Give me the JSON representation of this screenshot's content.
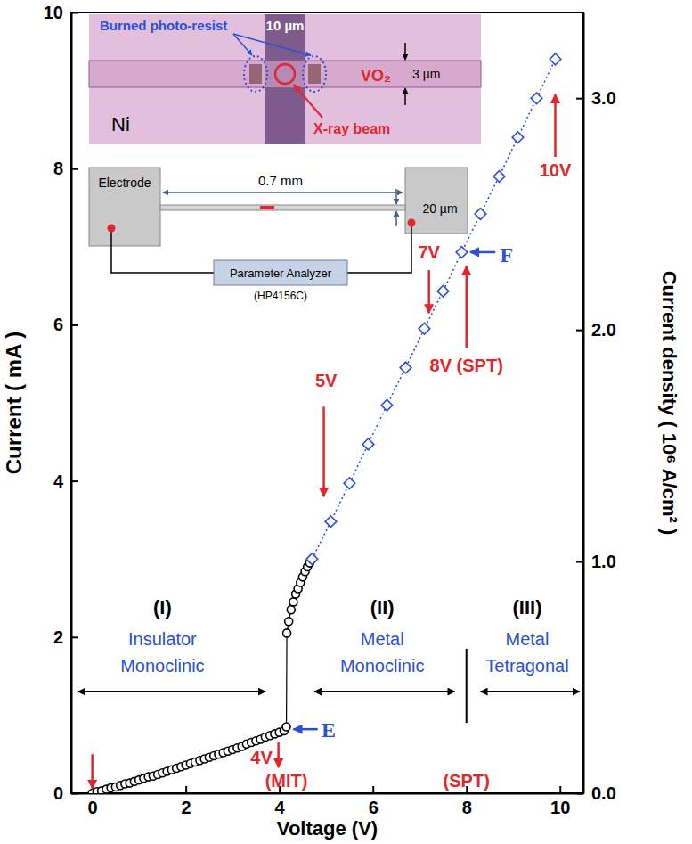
{
  "chart_data": {
    "type": "line",
    "xlabel": "Voltage (V)",
    "ylabel": "Current ( mA )",
    "y2label": "Current density ( 10⁶ A/cm² )",
    "xlim": [
      -0.45,
      10.5
    ],
    "ylim": [
      0,
      10
    ],
    "y2lim": [
      0,
      3.37
    ],
    "xticks": [
      0,
      2,
      4,
      6,
      8,
      10
    ],
    "yticks": [
      0,
      2,
      4,
      6,
      8,
      10
    ],
    "y2ticks": [
      {
        "value": 0,
        "label": "0.0"
      },
      {
        "value": 1,
        "label": "1.0"
      },
      {
        "value": 2,
        "label": "2.0"
      },
      {
        "value": 3,
        "label": "3.0"
      }
    ],
    "grid": false,
    "series": [
      {
        "type": "line",
        "color": "#000000",
        "marker": "open-circle",
        "line_style": "solid",
        "x": [
          0,
          0.1,
          0.2,
          0.3,
          0.4,
          0.5,
          0.6,
          0.7,
          0.8,
          0.9,
          1.0,
          1.1,
          1.2,
          1.3,
          1.4,
          1.5,
          1.6,
          1.7,
          1.8,
          1.9,
          2.0,
          2.1,
          2.2,
          2.3,
          2.4,
          2.5,
          2.6,
          2.7,
          2.8,
          2.9,
          3.0,
          3.1,
          3.2,
          3.3,
          3.4,
          3.5,
          3.6,
          3.7,
          3.8,
          3.9,
          4.0,
          4.1,
          4.15,
          4.16,
          4.2,
          4.25,
          4.3,
          4.35,
          4.4,
          4.45,
          4.5,
          4.55,
          4.6,
          4.65,
          4.7
        ],
        "values": [
          0,
          0.02,
          0.03,
          0.05,
          0.07,
          0.08,
          0.1,
          0.12,
          0.13,
          0.15,
          0.17,
          0.19,
          0.21,
          0.22,
          0.24,
          0.26,
          0.28,
          0.3,
          0.32,
          0.34,
          0.36,
          0.38,
          0.4,
          0.42,
          0.44,
          0.46,
          0.48,
          0.5,
          0.52,
          0.54,
          0.56,
          0.58,
          0.6,
          0.63,
          0.65,
          0.67,
          0.69,
          0.72,
          0.74,
          0.76,
          0.78,
          0.8,
          0.85,
          2.05,
          2.2,
          2.35,
          2.45,
          2.55,
          2.62,
          2.7,
          2.77,
          2.84,
          2.9,
          2.95,
          3.0
        ]
      },
      {
        "type": "line",
        "color": "#2c4fd6",
        "marker": "open-diamond",
        "line_style": "dotted",
        "x": [
          4.7,
          5.1,
          5.5,
          5.9,
          6.3,
          6.7,
          7.1,
          7.5,
          7.9,
          8.3,
          8.7,
          9.1,
          9.5,
          9.9
        ],
        "values": [
          3.0,
          3.48,
          3.97,
          4.47,
          4.97,
          5.45,
          5.95,
          6.43,
          6.93,
          7.42,
          7.9,
          8.4,
          8.9,
          9.4
        ]
      }
    ],
    "annotations": [
      {
        "text": "(I)",
        "x": 1.5,
        "y": 2.3,
        "color": "#000000"
      },
      {
        "text": "Insulator",
        "x": 1.5,
        "y": 1.9,
        "color": "#2c4fd6"
      },
      {
        "text": "Monoclinic",
        "x": 1.5,
        "y": 1.55,
        "color": "#2c4fd6"
      },
      {
        "text": "(II)",
        "x": 6.2,
        "y": 2.3,
        "color": "#000000"
      },
      {
        "text": "Metal",
        "x": 6.2,
        "y": 1.9,
        "color": "#2c4fd6"
      },
      {
        "text": "Monoclinic",
        "x": 6.2,
        "y": 1.55,
        "color": "#2c4fd6"
      },
      {
        "text": "(III)",
        "x": 9.3,
        "y": 2.3,
        "color": "#000000"
      },
      {
        "text": "Metal",
        "x": 9.3,
        "y": 1.9,
        "color": "#2c4fd6"
      },
      {
        "text": "Tetragonal",
        "x": 9.3,
        "y": 1.55,
        "color": "#2c4fd6"
      },
      {
        "text": "4V",
        "x": 3.85,
        "y": 0.38,
        "color": "#e3262b"
      },
      {
        "text": "(MIT)",
        "x": 4.15,
        "y": 0.08,
        "color": "#e3262b"
      },
      {
        "text": "(SPT)",
        "x": 8.0,
        "y": 0.08,
        "color": "#e3262b"
      },
      {
        "text": "5V",
        "x": 5.0,
        "y": 5.2,
        "color": "#e3262b"
      },
      {
        "text": "7V",
        "x": 7.2,
        "y": 6.85,
        "color": "#e3262b"
      },
      {
        "text": "8V (SPT)",
        "x": 8.0,
        "y": 5.4,
        "color": "#e3262b"
      },
      {
        "text": "10V",
        "x": 9.9,
        "y": 7.9,
        "color": "#e3262b"
      },
      {
        "text": "E",
        "x": 4.9,
        "y": 0.72,
        "color": "#2c4fd6"
      },
      {
        "text": "F",
        "x": 8.72,
        "y": 6.8,
        "color": "#2c4fd6"
      }
    ],
    "inset": {
      "burned": "Burned photo-resist",
      "gap": "10 µm",
      "material": "VO₂",
      "width": "3 µm",
      "metal": "Ni",
      "beam": "X-ray beam",
      "electrode": "Electrode",
      "length": "0.7 mm",
      "strip_width": "20 µm",
      "analyzer": "Parameter Analyzer",
      "model": "(HP4156C)"
    }
  }
}
